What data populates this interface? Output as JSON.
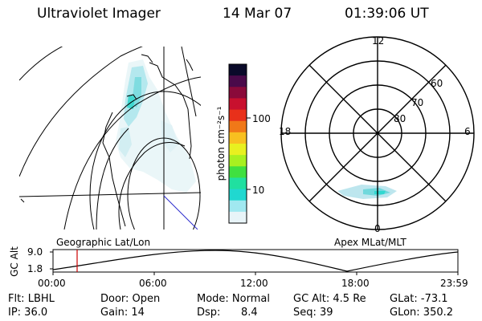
{
  "header": {
    "instrument": "Ultraviolet Imager",
    "date": "14 Mar 07",
    "time": "01:39:06 UT"
  },
  "colorbar": {
    "unit_label": "photon cm⁻²s⁻¹",
    "ticks": [
      "100",
      "10"
    ],
    "colors": [
      "#0a0a2a",
      "#4a0a4a",
      "#8a0a3a",
      "#c8102e",
      "#e8301a",
      "#f07818",
      "#f8c020",
      "#e8f020",
      "#a8f020",
      "#40e040",
      "#20e0a0",
      "#20d8d0",
      "#a0e8f0",
      "#e8f4f8"
    ]
  },
  "polar_plot": {
    "hour_labels": [
      "12",
      "18",
      "6",
      "0"
    ],
    "lat_labels": [
      "60",
      "70",
      "80"
    ]
  },
  "altitude_plot": {
    "y_axis_label": "GC Alt",
    "y_ticks": [
      "9.0",
      "1.8"
    ],
    "left_title": "Geographic Lat/Lon",
    "right_title": "Apex MLat/MLT",
    "x_ticks": [
      "00:00",
      "06:00",
      "12:00",
      "18:00",
      "23:59"
    ],
    "current_marker_color": "#cc0000"
  },
  "info": {
    "filter": "Flt: LBHL",
    "door": "Door: Open",
    "mode": "Mode: Normal",
    "gc_alt": "GC Alt: 4.5 Re",
    "glat": "GLat: -73.1",
    "ip": "IP: 36.0",
    "gain": "Gain: 14",
    "dsp_label": "Dsp:",
    "dsp_value": "8.4",
    "seq": "Seq: 39",
    "glon": "GLon: 350.2"
  }
}
